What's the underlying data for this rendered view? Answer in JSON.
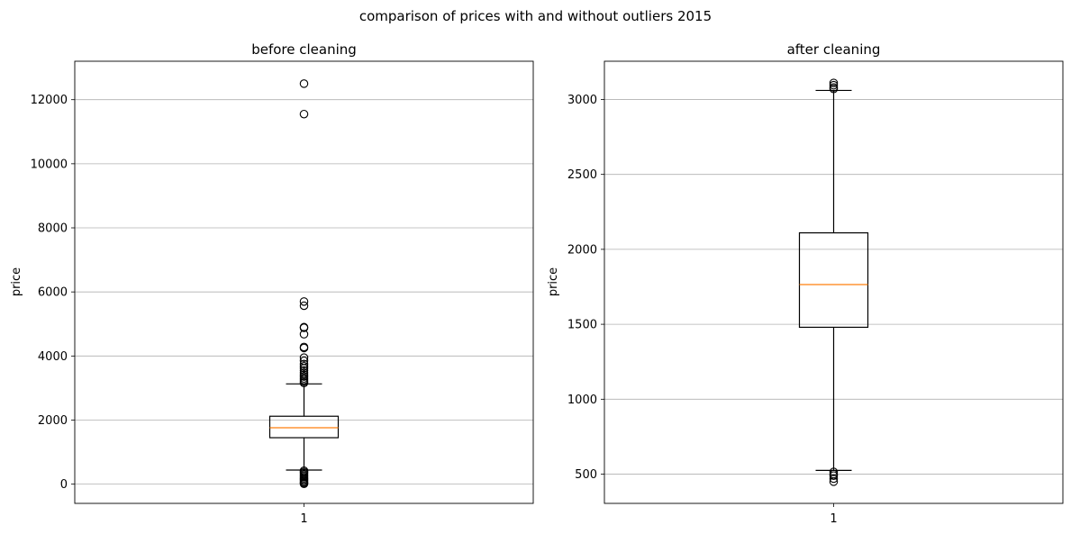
{
  "figure": {
    "suptitle": "comparison of prices with and without outliers 2015"
  },
  "colors": {
    "box": "#000000",
    "median": "#ff7f0e",
    "grid": "#b0b0b0"
  },
  "chart_data": [
    {
      "type": "box",
      "title": "before cleaning",
      "xlabel": "",
      "ylabel": "price",
      "x_categories": [
        "1"
      ],
      "ylim": [
        -600,
        13200
      ],
      "yticks": [
        0,
        2000,
        4000,
        6000,
        8000,
        10000,
        12000
      ],
      "grid": "y",
      "box": {
        "q1": 1450,
        "median": 1760,
        "q3": 2120,
        "whisker_low": 440,
        "whisker_high": 3130
      },
      "outliers": [
        12500,
        11550,
        5700,
        5570,
        4900,
        4880,
        4680,
        4280,
        4250,
        3950,
        3850,
        3750,
        3680,
        3620,
        3550,
        3480,
        3420,
        3360,
        3300,
        3250,
        3200,
        3160,
        420,
        380,
        340,
        300,
        260,
        220,
        180,
        140,
        100,
        60,
        30,
        10
      ]
    },
    {
      "type": "box",
      "title": "after cleaning",
      "xlabel": "",
      "ylabel": "price",
      "x_categories": [
        "1"
      ],
      "ylim": [
        305,
        3255
      ],
      "yticks": [
        500,
        1000,
        1500,
        2000,
        2500,
        3000
      ],
      "grid": "y",
      "box": {
        "q1": 1480,
        "median": 1765,
        "q3": 2110,
        "whisker_low": 525,
        "whisker_high": 3060
      },
      "outliers": [
        3110,
        3095,
        3080,
        3070,
        515,
        500,
        490,
        470,
        450
      ]
    }
  ]
}
